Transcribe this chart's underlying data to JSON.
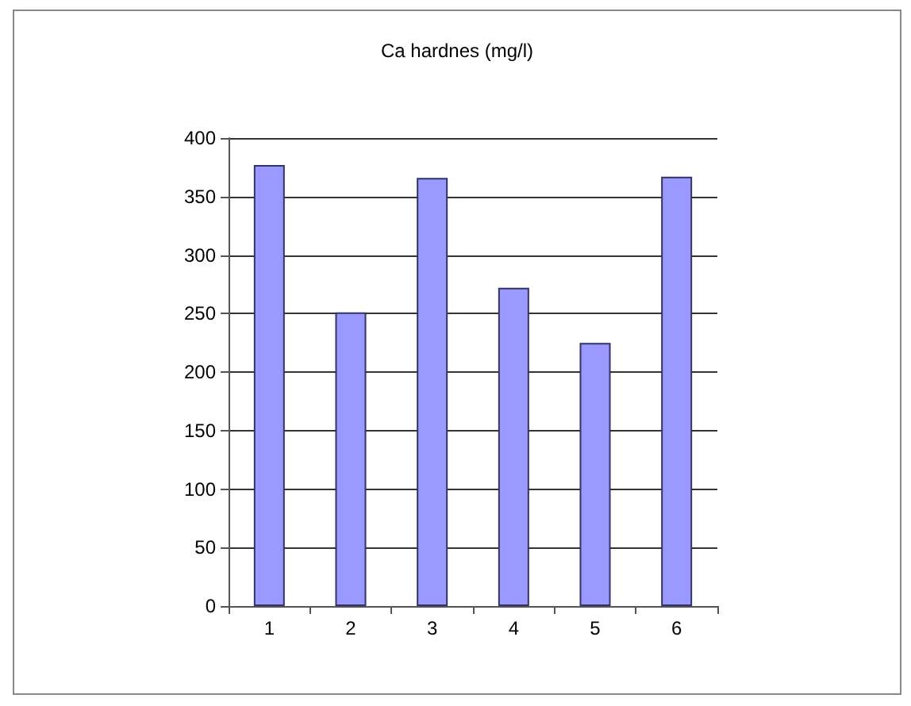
{
  "chart_data": {
    "type": "bar",
    "title": "Ca hardnes (mg/l)",
    "categories": [
      "1",
      "2",
      "3",
      "4",
      "5",
      "6"
    ],
    "values": [
      377,
      251,
      366,
      272,
      225,
      367
    ],
    "color": "#9999ff",
    "ylim": [
      0,
      400
    ],
    "yticks": [
      0,
      50,
      100,
      150,
      200,
      250,
      300,
      350,
      400
    ],
    "grid": "y"
  }
}
